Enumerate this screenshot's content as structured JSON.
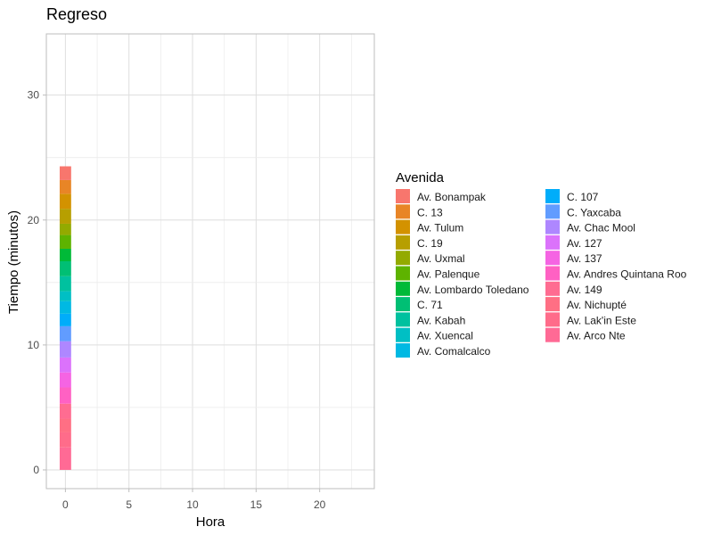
{
  "chart_data": {
    "type": "bar",
    "title": "Regreso",
    "xlabel": "Hora",
    "ylabel": "Tiempo (minutos)",
    "xlim": [
      -1.5,
      24.3
    ],
    "ylim": [
      -1.5,
      34.9
    ],
    "x_ticks": [
      0,
      5,
      10,
      15,
      20
    ],
    "y_ticks": [
      0,
      10,
      20,
      30
    ],
    "grid": true,
    "stacked": true,
    "legend_title": "Avenida",
    "legend_position": "right",
    "bar_x": 0,
    "series": [
      {
        "name": "Av. Bonampak",
        "values": [
          1.1
        ],
        "color": "#F8766D"
      },
      {
        "name": "C. 13",
        "values": [
          1.1
        ],
        "color": "#E88526"
      },
      {
        "name": "Av. Tulum",
        "values": [
          1.2
        ],
        "color": "#D39200"
      },
      {
        "name": "C. 19",
        "values": [
          1.2
        ],
        "color": "#B79F00"
      },
      {
        "name": "Av. Uxmal",
        "values": [
          0.9
        ],
        "color": "#93AA00"
      },
      {
        "name": "Av. Palenque",
        "values": [
          1.1
        ],
        "color": "#5EB300"
      },
      {
        "name": "Av. Lombardo Toledano",
        "values": [
          1.0
        ],
        "color": "#00BA38"
      },
      {
        "name": "C. 71",
        "values": [
          1.2
        ],
        "color": "#00BF74"
      },
      {
        "name": "Av. Kabah",
        "values": [
          1.2
        ],
        "color": "#00C19F"
      },
      {
        "name": "Av. Xuencal",
        "values": [
          0.8
        ],
        "color": "#00BFC4"
      },
      {
        "name": "Av. Comalcalco",
        "values": [
          1.0
        ],
        "color": "#00B9E3"
      },
      {
        "name": "C. 107",
        "values": [
          1.0
        ],
        "color": "#00ADFA"
      },
      {
        "name": "C. Yaxcaba",
        "values": [
          1.2
        ],
        "color": "#619CFF"
      },
      {
        "name": "Av. Chac Mool",
        "values": [
          1.3
        ],
        "color": "#AE87FF"
      },
      {
        "name": "Av. 127",
        "values": [
          1.2
        ],
        "color": "#DB72FB"
      },
      {
        "name": "Av. 137",
        "values": [
          1.2
        ],
        "color": "#F564E3"
      },
      {
        "name": "Av. Andres Quintana Roo",
        "values": [
          1.3
        ],
        "color": "#FF61C3"
      },
      {
        "name": "Av. 149",
        "values": [
          1.2
        ],
        "color": "#FF6C91"
      },
      {
        "name": "Av. Nichupté",
        "values": [
          1.1
        ],
        "color": "#FF6F84"
      },
      {
        "name": "Av. Lak'in Este",
        "values": [
          1.2
        ],
        "color": "#FF6C8A"
      },
      {
        "name": "Av. Arco Nte",
        "values": [
          1.8
        ],
        "color": "#FF6A95"
      }
    ]
  }
}
